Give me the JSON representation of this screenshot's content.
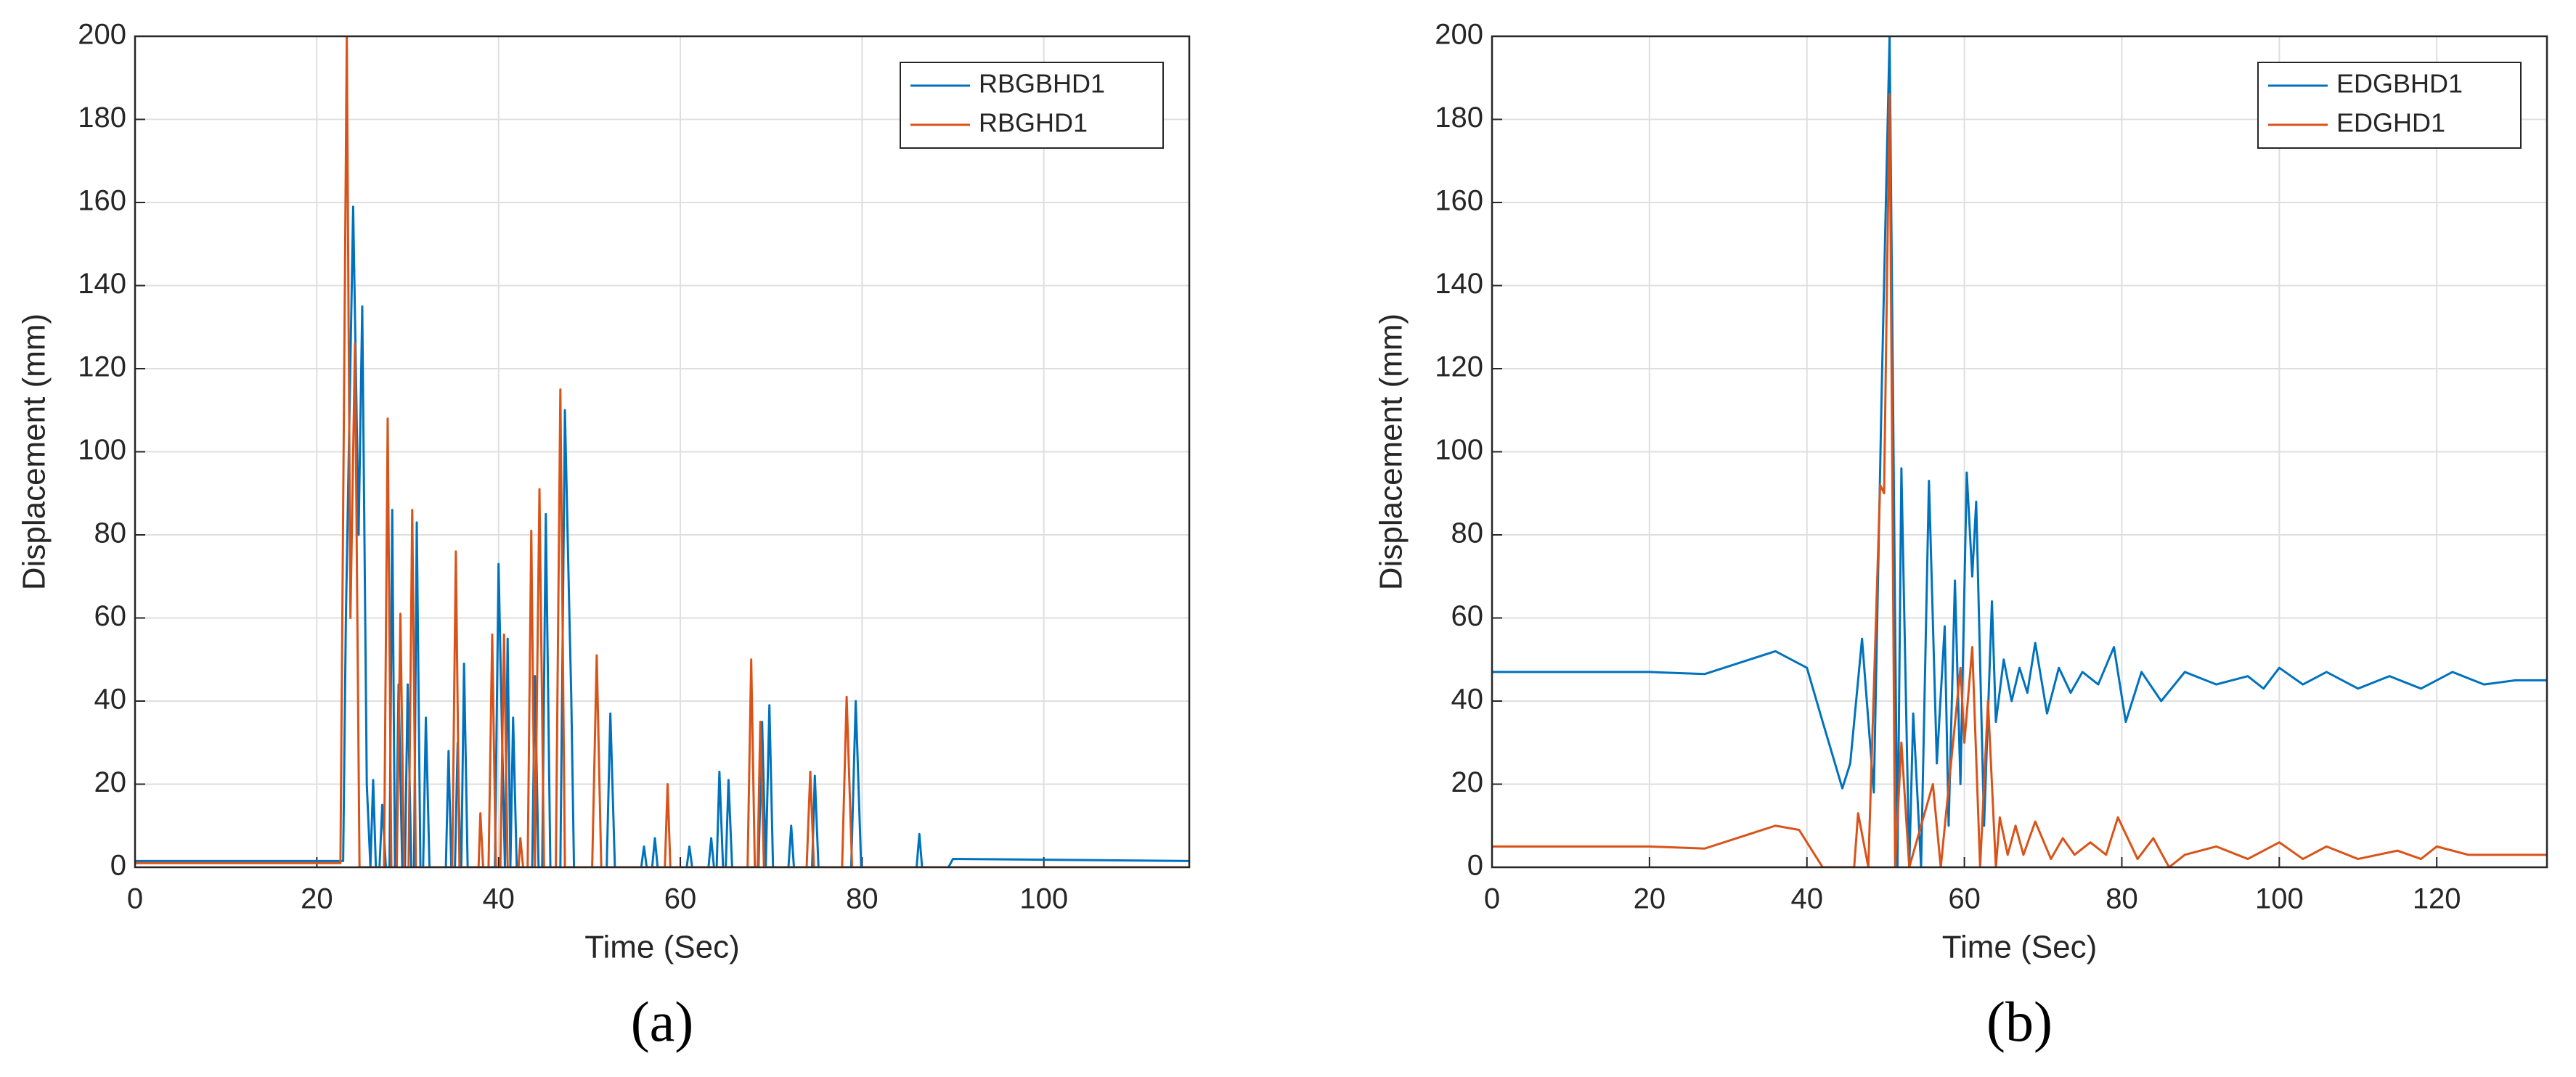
{
  "chart_data": [
    {
      "type": "line",
      "caption": "(a)",
      "xlabel": "Time (Sec)",
      "ylabel": "Displacement (mm)",
      "xlim": [
        0,
        116
      ],
      "ylim": [
        0,
        200
      ],
      "xticks": [
        0,
        20,
        40,
        60,
        80,
        100
      ],
      "yticks": [
        0,
        20,
        40,
        60,
        80,
        100,
        120,
        140,
        160,
        180,
        200
      ],
      "grid": true,
      "legend": "upper right",
      "series": [
        {
          "name": "RBGBHD1",
          "color": "#0072BD",
          "x": [
            0,
            22.9,
            23.2,
            24,
            24.6,
            25,
            25.5,
            25.9,
            26.2,
            26.5,
            26.9,
            27.2,
            27.6,
            28,
            28.3,
            28.6,
            28.7,
            29,
            29.4,
            29.7,
            30,
            30.4,
            30.7,
            31,
            31.4,
            31.7,
            32,
            32.4,
            34.2,
            34.5,
            34.8,
            35.2,
            35.5,
            35.8,
            35.9,
            36.2,
            36.6,
            39.6,
            40,
            40.4,
            40.7,
            41,
            41.3,
            41.6,
            42,
            43.7,
            44,
            44.4,
            44.8,
            45.2,
            45.7,
            46.8,
            47.3,
            47.8,
            48,
            48.3,
            51.9,
            52.3,
            52.8,
            55.7,
            56,
            56.3,
            56.9,
            57.2,
            57.5,
            60.7,
            61,
            61.3,
            63.1,
            63.4,
            63.7,
            64,
            64.3,
            64.7,
            65,
            65.3,
            65.7,
            68.6,
            69,
            69.4,
            69.8,
            70.2,
            71.9,
            72.2,
            72.5,
            74.5,
            74.8,
            75.2,
            78.8,
            79.3,
            79.9,
            86,
            86.3,
            86.6,
            89.5,
            90,
            116
          ],
          "values": [
            1.5,
            1.5,
            60,
            159,
            80,
            135,
            20,
            0,
            21,
            0,
            0,
            15,
            0,
            0,
            86,
            0,
            0,
            44,
            0,
            0,
            44,
            0,
            0,
            83,
            0,
            0,
            36,
            0,
            0,
            28,
            0,
            0,
            30,
            0,
            0,
            49,
            0,
            0,
            73,
            30,
            0,
            55,
            0,
            36,
            0,
            0,
            46,
            0,
            0,
            85,
            0,
            0,
            110,
            60,
            41,
            0,
            0,
            37,
            0,
            0,
            5,
            0,
            0,
            7,
            0,
            0,
            5,
            0,
            0,
            7,
            0,
            0,
            23,
            0,
            0,
            21,
            0,
            0,
            35,
            0,
            39,
            0,
            0,
            10,
            0,
            0,
            22,
            0,
            0,
            40,
            0,
            0,
            8,
            0,
            0,
            2,
            1.5
          ]
        },
        {
          "name": "RBGHD1",
          "color": "#D95319",
          "x": [
            0,
            22.6,
            23.3,
            23.7,
            24.2,
            24.7,
            27.4,
            27.8,
            28.2,
            28.8,
            29.2,
            29.6,
            30.1,
            30.5,
            30.9,
            34.9,
            35.3,
            35.7,
            37.8,
            38,
            38.3,
            38.9,
            39.3,
            39.7,
            40.2,
            40.6,
            41,
            42.2,
            42.4,
            42.7,
            43.2,
            43.6,
            44,
            44.5,
            45,
            46.3,
            46.8,
            47.3,
            50.3,
            50.8,
            51.3,
            58.3,
            58.6,
            58.9,
            67.4,
            67.8,
            68.2,
            68.5,
            68.8,
            69.2,
            73.9,
            74.3,
            74.7,
            77.8,
            78.3,
            78.9,
            116
          ],
          "values": [
            1,
            1,
            200,
            60,
            126,
            0,
            0,
            108,
            0,
            0,
            61,
            0,
            0,
            86,
            0,
            0,
            76,
            0,
            0,
            13,
            0,
            0,
            56,
            0,
            0,
            56,
            0,
            0,
            7,
            0,
            0,
            81,
            0,
            91,
            0,
            0,
            115,
            0,
            0,
            51,
            0,
            0,
            20,
            0,
            0,
            50,
            0,
            0,
            35,
            0,
            0,
            23,
            0,
            0,
            41,
            0,
            0
          ]
        }
      ]
    },
    {
      "type": "line",
      "caption": "(b)",
      "xlabel": "Time (Sec)",
      "ylabel": "Displacement (mm)",
      "xlim": [
        0,
        134
      ],
      "ylim": [
        0,
        200
      ],
      "xticks": [
        0,
        20,
        40,
        60,
        80,
        100,
        120
      ],
      "yticks": [
        0,
        20,
        40,
        60,
        80,
        100,
        120,
        140,
        160,
        180,
        200
      ],
      "grid": true,
      "legend": "upper right",
      "series": [
        {
          "name": "EDGBHD1",
          "color": "#0072BD",
          "x": [
            0,
            20,
            27,
            36,
            40,
            42,
            44.5,
            45.5,
            47,
            48.5,
            49.5,
            50.5,
            51.5,
            52,
            53,
            53.5,
            54.5,
            55.5,
            56.5,
            57.5,
            58,
            58.8,
            59.5,
            60.3,
            61,
            61.5,
            62.5,
            63.5,
            64,
            65,
            66,
            67,
            68,
            69,
            70.5,
            72,
            73.5,
            75,
            77,
            79,
            80.5,
            82.5,
            85,
            88,
            92,
            96,
            98,
            100,
            103,
            106,
            110,
            114,
            118,
            122,
            126,
            130,
            134
          ],
          "values": [
            47,
            47,
            46.5,
            52,
            48,
            35,
            19,
            25,
            55,
            18,
            115,
            200,
            0,
            96,
            0,
            37,
            0,
            93,
            25,
            58,
            10,
            69,
            20,
            95,
            70,
            88,
            10,
            64,
            35,
            50,
            40,
            48,
            42,
            54,
            37,
            48,
            42,
            47,
            44,
            53,
            35,
            47,
            40,
            47,
            44,
            46,
            43,
            48,
            44,
            47,
            43,
            46,
            43,
            47,
            44,
            45,
            45
          ]
        },
        {
          "name": "EDGHD1",
          "color": "#D95319",
          "x": [
            0,
            20,
            27,
            36,
            39,
            42,
            46,
            46.5,
            47.8,
            49.3,
            49.8,
            50.5,
            51.2,
            52,
            53,
            56,
            57,
            59.5,
            60,
            61,
            62,
            63,
            64,
            64.5,
            65.5,
            66.5,
            67.5,
            69,
            71,
            72.5,
            74,
            76,
            78,
            79.5,
            82,
            84,
            86,
            88,
            92,
            96,
            100,
            103,
            106,
            110,
            115,
            118,
            120,
            124,
            134
          ],
          "values": [
            5,
            5,
            4.5,
            10,
            9,
            0,
            0,
            13,
            0,
            92,
            90,
            186,
            0,
            30,
            0,
            20,
            0,
            48,
            30,
            53,
            0,
            40,
            0,
            12,
            3,
            10,
            3,
            11,
            2,
            7,
            3,
            6,
            3,
            12,
            2,
            7,
            0,
            3,
            5,
            2,
            6,
            2,
            5,
            2,
            4,
            2,
            5,
            3,
            3
          ]
        }
      ]
    }
  ]
}
